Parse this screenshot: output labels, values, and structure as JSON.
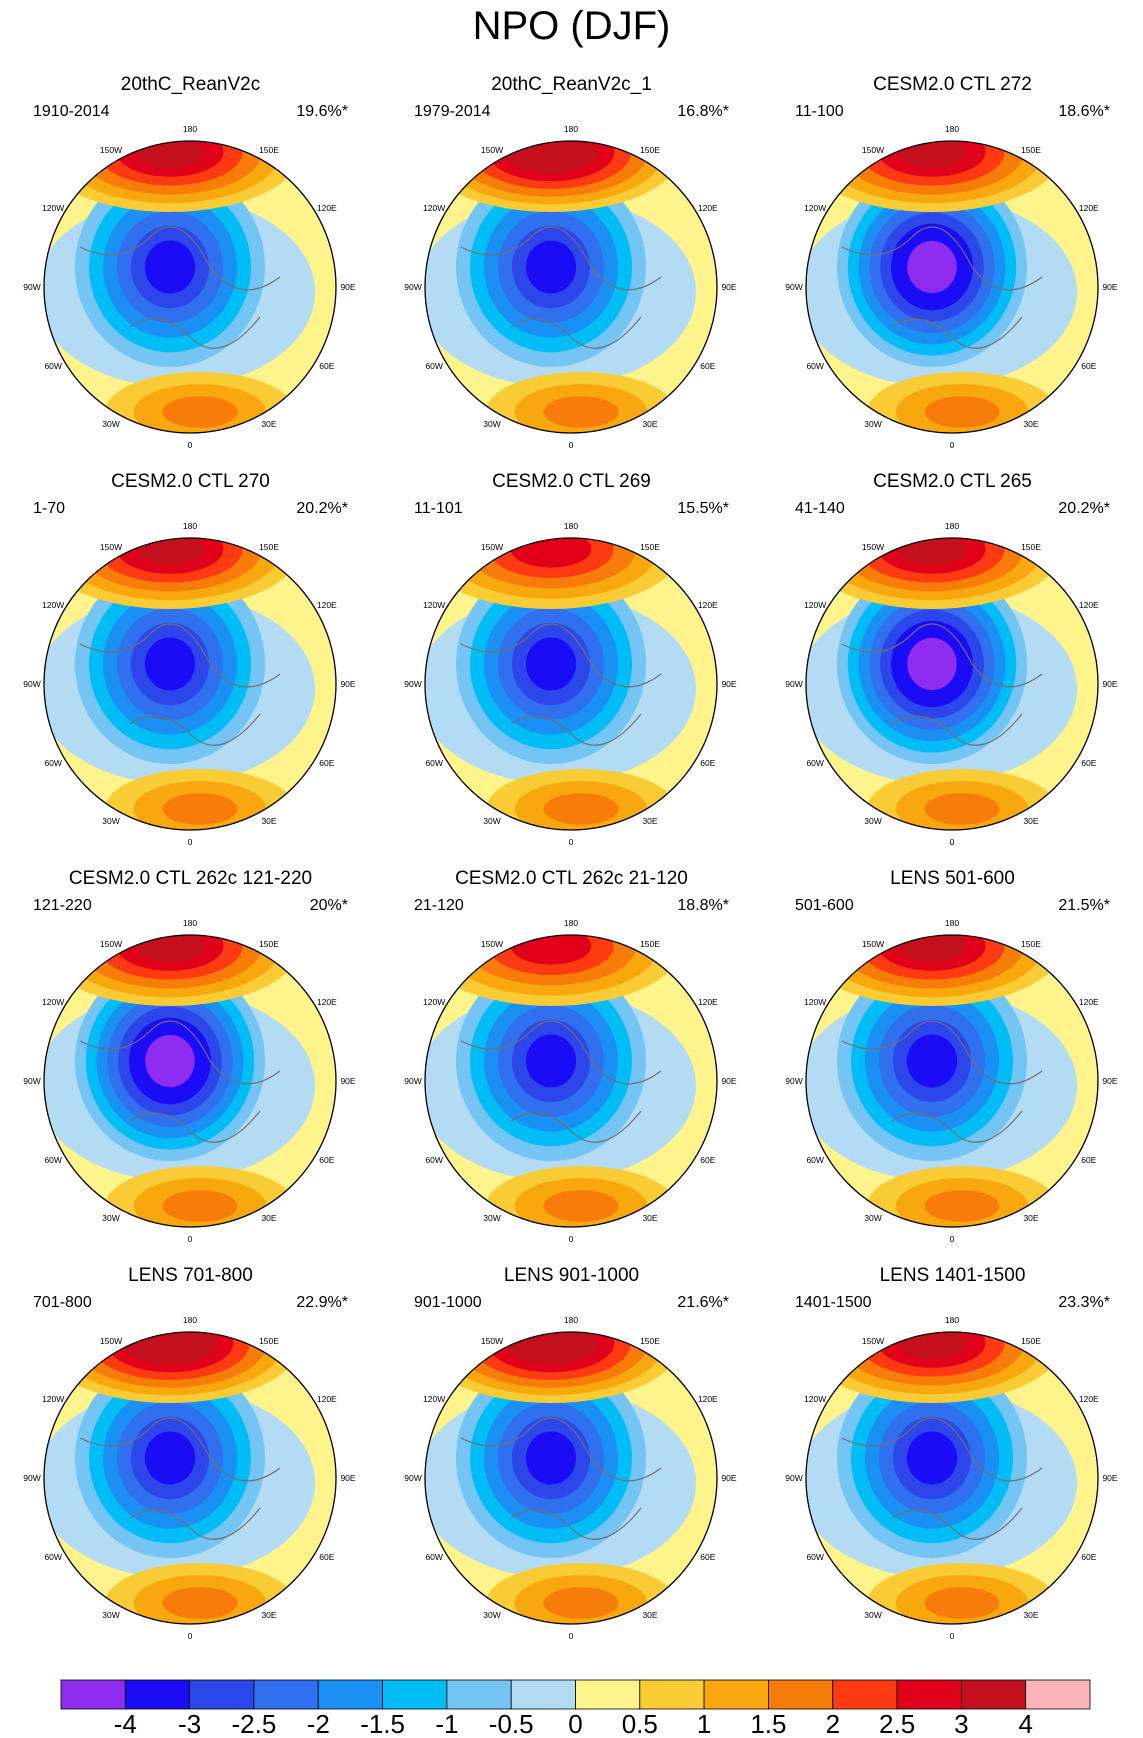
{
  "main_title": "NPO (DJF)",
  "chart_data": {
    "type": "polar-stereographic contour map panels",
    "title": "NPO (DJF)",
    "hemisphere": "Northern",
    "longitude_labels": [
      "180",
      "150E",
      "120E",
      "90E",
      "60E",
      "30E",
      "0",
      "30W",
      "60W",
      "90W",
      "120W",
      "150W"
    ],
    "panels": [
      {
        "title": "20thC_ReanV2c",
        "period": "1910-2014",
        "variance": "19.6%*",
        "pacific_max": 2.5,
        "arctic_min": -3
      },
      {
        "title": "20thC_ReanV2c_1",
        "period": "1979-2014",
        "variance": "16.8%*",
        "pacific_max": 3,
        "arctic_min": -3
      },
      {
        "title": "CESM2.0 CTL 272",
        "period": "11-100",
        "variance": "18.6%*",
        "pacific_max": 2.5,
        "arctic_min": -4
      },
      {
        "title": "CESM2.0 CTL 270",
        "period": "1-70",
        "variance": "20.2%*",
        "pacific_max": 2.5,
        "arctic_min": -3
      },
      {
        "title": "CESM2.0 CTL 269",
        "period": "11-101",
        "variance": "15.5%*",
        "pacific_max": 2,
        "arctic_min": -3
      },
      {
        "title": "CESM2.0 CTL 265",
        "period": "41-140",
        "variance": "20.2%*",
        "pacific_max": 2.5,
        "arctic_min": -4
      },
      {
        "title": "CESM2.0 CTL 262c 121-220",
        "period": "121-220",
        "variance": "20%*",
        "pacific_max": 2.5,
        "arctic_min": -4
      },
      {
        "title": "CESM2.0 CTL 262c 21-120",
        "period": "21-120",
        "variance": "18.8%*",
        "pacific_max": 2,
        "arctic_min": -3
      },
      {
        "title": "LENS 501-600",
        "period": "501-600",
        "variance": "21.5%*",
        "pacific_max": 2.5,
        "arctic_min": -3
      },
      {
        "title": "LENS 701-800",
        "period": "701-800",
        "variance": "22.9%*",
        "pacific_max": 3,
        "arctic_min": -3
      },
      {
        "title": "LENS 901-1000",
        "period": "901-1000",
        "variance": "21.6%*",
        "pacific_max": 3,
        "arctic_min": -3
      },
      {
        "title": "LENS 1401-1500",
        "period": "1401-1500",
        "variance": "23.3%*",
        "pacific_max": 2.5,
        "arctic_min": -3
      }
    ],
    "colorbar": {
      "labels": [
        "-4",
        "-3",
        "-2.5",
        "-2",
        "-1.5",
        "-1",
        "-0.5",
        "0",
        "0.5",
        "1",
        "1.5",
        "2",
        "2.5",
        "3",
        "4"
      ],
      "colors": [
        "#8e2cf0",
        "#1a0cf5",
        "#2c46ea",
        "#3070ee",
        "#1a90f5",
        "#00bdf5",
        "#74c4f4",
        "#b3dcf4",
        "#fff38c",
        "#f9cb35",
        "#f8a70f",
        "#f77c0a",
        "#fd3a12",
        "#e1001a",
        "#c4101d",
        "#fdb4b8"
      ]
    }
  }
}
